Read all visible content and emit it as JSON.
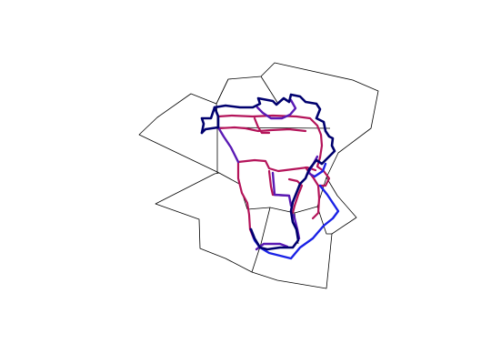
{
  "map": {
    "colors": {
      "background": "#ffffff",
      "region_border": "#000000",
      "route_dark": "#00006e",
      "route_blue": "#1a22e6",
      "route_purple": "#5a1ab4",
      "route_magenta": "#b4145a"
    },
    "icons": {
      "region": "polygon-outline",
      "route": "thick-polyline"
    }
  }
}
